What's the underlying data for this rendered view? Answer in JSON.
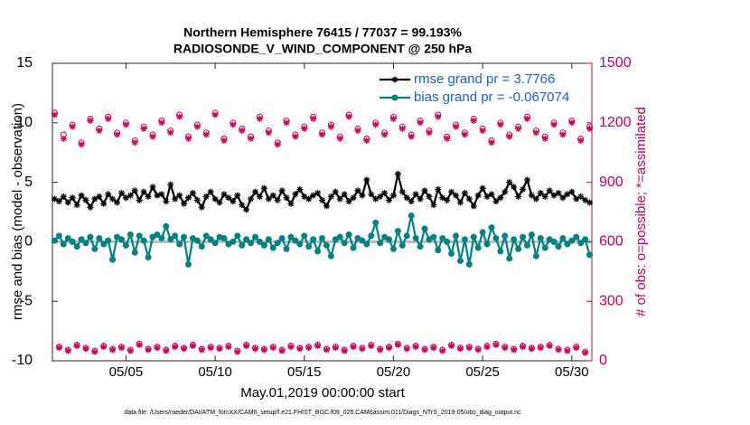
{
  "chart_data": {
    "type": "line",
    "title": [
      "Northern Hemisphere 76415 / 77037 = 99.193%",
      "RADIOSONDE_V_WIND_COMPONENT @ 250 hPa"
    ],
    "xlabel": "May.01,2019 00:00:00 start",
    "ylabel": "rmse and bias (model - observation)",
    "y2label": "# of obs: o=possible; *=assimilated",
    "footnote": "data file: /Users/raeder/DAI/ATM_forcXX/CAM6_setup/f.e21.FHIST_BGC.f09_025.CAM6assim.011/Diags_NTrS_2019-05/obs_diag_output.nc",
    "xlim": [
      -0.125,
      30.125
    ],
    "xticks": [
      {
        "value": 4,
        "label": "05/05"
      },
      {
        "value": 9,
        "label": "05/10"
      },
      {
        "value": 14,
        "label": "05/15"
      },
      {
        "value": 19,
        "label": "05/20"
      },
      {
        "value": 24,
        "label": "05/25"
      },
      {
        "value": 29,
        "label": "05/30"
      }
    ],
    "ylim": [
      -10,
      15
    ],
    "yticks": [
      -10,
      -5,
      0,
      5,
      10,
      15
    ],
    "y2lim": [
      0,
      1500
    ],
    "y2ticks": [
      0,
      300,
      600,
      900,
      1200,
      1500
    ],
    "legend": "upper right",
    "x": [
      0,
      0.25,
      0.5,
      0.75,
      1,
      1.25,
      1.5,
      1.75,
      2,
      2.25,
      2.5,
      2.75,
      3,
      3.25,
      3.5,
      3.75,
      4,
      4.25,
      4.5,
      4.75,
      5,
      5.25,
      5.5,
      5.75,
      6,
      6.25,
      6.5,
      6.75,
      7,
      7.25,
      7.5,
      7.75,
      8,
      8.25,
      8.5,
      8.75,
      9,
      9.25,
      9.5,
      9.75,
      10,
      10.25,
      10.5,
      10.75,
      11,
      11.25,
      11.5,
      11.75,
      12,
      12.25,
      12.5,
      12.75,
      13,
      13.25,
      13.5,
      13.75,
      14,
      14.25,
      14.5,
      14.75,
      15,
      15.25,
      15.5,
      15.75,
      16,
      16.25,
      16.5,
      16.75,
      17,
      17.25,
      17.5,
      17.75,
      18,
      18.25,
      18.5,
      18.75,
      19,
      19.25,
      19.5,
      19.75,
      20,
      20.25,
      20.5,
      20.75,
      21,
      21.25,
      21.5,
      21.75,
      22,
      22.25,
      22.5,
      22.75,
      23,
      23.25,
      23.5,
      23.75,
      24,
      24.25,
      24.5,
      24.75,
      25,
      25.25,
      25.5,
      25.75,
      26,
      26.25,
      26.5,
      26.75,
      27,
      27.25,
      27.5,
      27.75,
      28,
      28.25,
      28.5,
      28.75,
      29,
      29.25,
      29.5,
      29.75,
      30
    ],
    "series": [
      {
        "name": "rmse grand pr = 3.7766",
        "color": "#000000",
        "marker": "asterisk",
        "line": true,
        "values": [
          3.6,
          3.4,
          3.8,
          3.3,
          3.7,
          3.1,
          3.9,
          3.5,
          2.9,
          3.6,
          3.8,
          3.2,
          4.0,
          3.6,
          3.3,
          4.1,
          3.7,
          3.9,
          4.3,
          3.5,
          4.2,
          3.8,
          4.6,
          3.9,
          4.0,
          3.4,
          4.8,
          3.6,
          3.9,
          3.2,
          3.7,
          4.1,
          3.5,
          2.9,
          3.8,
          4.2,
          3.6,
          3.3,
          4.0,
          3.7,
          3.4,
          3.9,
          3.1,
          2.7,
          3.6,
          4.2,
          3.8,
          4.5,
          3.6,
          3.9,
          3.5,
          4.3,
          3.7,
          3.2,
          4.0,
          4.4,
          3.8,
          3.6,
          3.9,
          4.1,
          3.5,
          3.0,
          3.8,
          4.2,
          3.6,
          4.0,
          3.4,
          3.7,
          4.3,
          3.9,
          5.2,
          4.0,
          3.6,
          3.8,
          4.1,
          3.5,
          3.9,
          5.7,
          4.2,
          3.7,
          3.4,
          4.0,
          3.6,
          4.3,
          3.8,
          3.1,
          4.4,
          3.7,
          3.5,
          4.2,
          3.9,
          3.3,
          4.1,
          3.6,
          3.0,
          3.9,
          4.5,
          3.8,
          4.0,
          3.4,
          3.7,
          4.2,
          5.0,
          4.6,
          3.8,
          4.4,
          5.2,
          3.9,
          3.6,
          4.1,
          3.8,
          4.3,
          3.9,
          4.1,
          3.7,
          4.0,
          4.2,
          3.6,
          3.8,
          3.5,
          3.3
        ]
      },
      {
        "name": "bias grand pr = -0.067074",
        "color": "#008080",
        "marker": "circle-filled",
        "line": true,
        "values": [
          0.1,
          0.5,
          -0.2,
          0.3,
          0.0,
          -0.4,
          0.2,
          -0.1,
          0.4,
          -0.6,
          0.3,
          -0.2,
          0.1,
          -1.5,
          0.4,
          0.2,
          -0.3,
          0.6,
          -0.9,
          0.5,
          0.1,
          -1.3,
          0.4,
          0.6,
          0.3,
          1.3,
          0.2,
          0.5,
          -0.2,
          0.4,
          -1.9,
          0.3,
          0.1,
          -0.4,
          0.5,
          0.2,
          -0.1,
          0.4,
          0.3,
          -0.2,
          0.0,
          0.5,
          -0.3,
          0.2,
          -0.1,
          0.4,
          0.0,
          -0.3,
          0.2,
          -0.5,
          -0.1,
          0.3,
          -0.6,
          0.4,
          0.1,
          -0.2,
          0.5,
          -0.4,
          0.2,
          -0.8,
          0.3,
          -0.3,
          -1.2,
          0.2,
          0.4,
          -0.1,
          0.6,
          -0.5,
          0.3,
          0.1,
          -0.2,
          0.5,
          1.6,
          -0.1,
          0.4,
          0.2,
          -0.6,
          0.9,
          -0.3,
          0.5,
          2.2,
          0.3,
          -0.4,
          1.1,
          0.2,
          0.4,
          -0.7,
          0.3,
          0.0,
          -1.0,
          0.5,
          -1.6,
          0.2,
          -1.9,
          0.4,
          -0.5,
          0.8,
          -0.2,
          1.2,
          0.3,
          -0.8,
          0.5,
          -1.4,
          0.2,
          -0.6,
          0.4,
          -0.3,
          0.6,
          -1.2,
          0.3,
          -0.5,
          0.2,
          0.0,
          -0.4,
          0.3,
          -0.2,
          0.1,
          0.4,
          -0.1,
          0.2,
          -1.1
        ]
      },
      {
        "color": "#c8005a",
        "marker": "circle",
        "axis": "y2",
        "line": false,
        "values": [
          1250,
          70,
          1140,
          55,
          1190,
          80,
          1100,
          65,
          1220,
          50,
          1170,
          75,
          1230,
          60,
          1150,
          70,
          1200,
          55,
          1110,
          85,
          1180,
          60,
          1140,
          70,
          1210,
          55,
          1160,
          75,
          1240,
          65,
          1130,
          80,
          1190,
          60,
          1150,
          70,
          1250,
          65,
          1120,
          75,
          1200,
          50,
          1170,
          80,
          1130,
          65,
          1230,
          60,
          1160,
          70,
          1100,
          55,
          1210,
          75,
          1140,
          65,
          1180,
          70,
          1230,
          80,
          1150,
          60,
          1190,
          70,
          1130,
          55,
          1240,
          75,
          1170,
          65,
          1120,
          80,
          1200,
          60,
          1150,
          70,
          1230,
          85,
          1180,
          65,
          1140,
          75,
          1210,
          60,
          1160,
          70,
          1240,
          55,
          1130,
          80,
          1190,
          65,
          1150,
          70,
          1220,
          60,
          1170,
          75,
          1110,
          85,
          1200,
          70,
          1140,
          60,
          1180,
          75,
          1230,
          65,
          1160,
          70,
          1130,
          80,
          1200,
          60,
          1150,
          55,
          1210,
          70,
          1120,
          45,
          1180
        ]
      },
      {
        "color": "#c8005a",
        "marker": "asterisk",
        "axis": "y2",
        "line": false,
        "values": [
          1240,
          65,
          1120,
          50,
          1180,
          75,
          1090,
          60,
          1210,
          45,
          1160,
          70,
          1220,
          55,
          1140,
          65,
          1190,
          50,
          1100,
          80,
          1170,
          55,
          1130,
          65,
          1200,
          50,
          1150,
          70,
          1230,
          60,
          1120,
          75,
          1180,
          55,
          1140,
          65,
          1240,
          60,
          1110,
          70,
          1190,
          45,
          1160,
          75,
          1120,
          60,
          1220,
          55,
          1150,
          65,
          1090,
          50,
          1200,
          70,
          1130,
          60,
          1170,
          65,
          1220,
          75,
          1140,
          55,
          1180,
          65,
          1120,
          50,
          1230,
          70,
          1160,
          60,
          1110,
          75,
          1190,
          55,
          1140,
          65,
          1220,
          80,
          1170,
          60,
          1130,
          70,
          1200,
          55,
          1150,
          65,
          1230,
          50,
          1120,
          75,
          1180,
          60,
          1140,
          65,
          1210,
          55,
          1160,
          70,
          1100,
          80,
          1190,
          65,
          1130,
          55,
          1170,
          70,
          1220,
          60,
          1150,
          65,
          1120,
          75,
          1190,
          55,
          1140,
          50,
          1200,
          65,
          1110,
          40,
          1170
        ]
      }
    ]
  }
}
